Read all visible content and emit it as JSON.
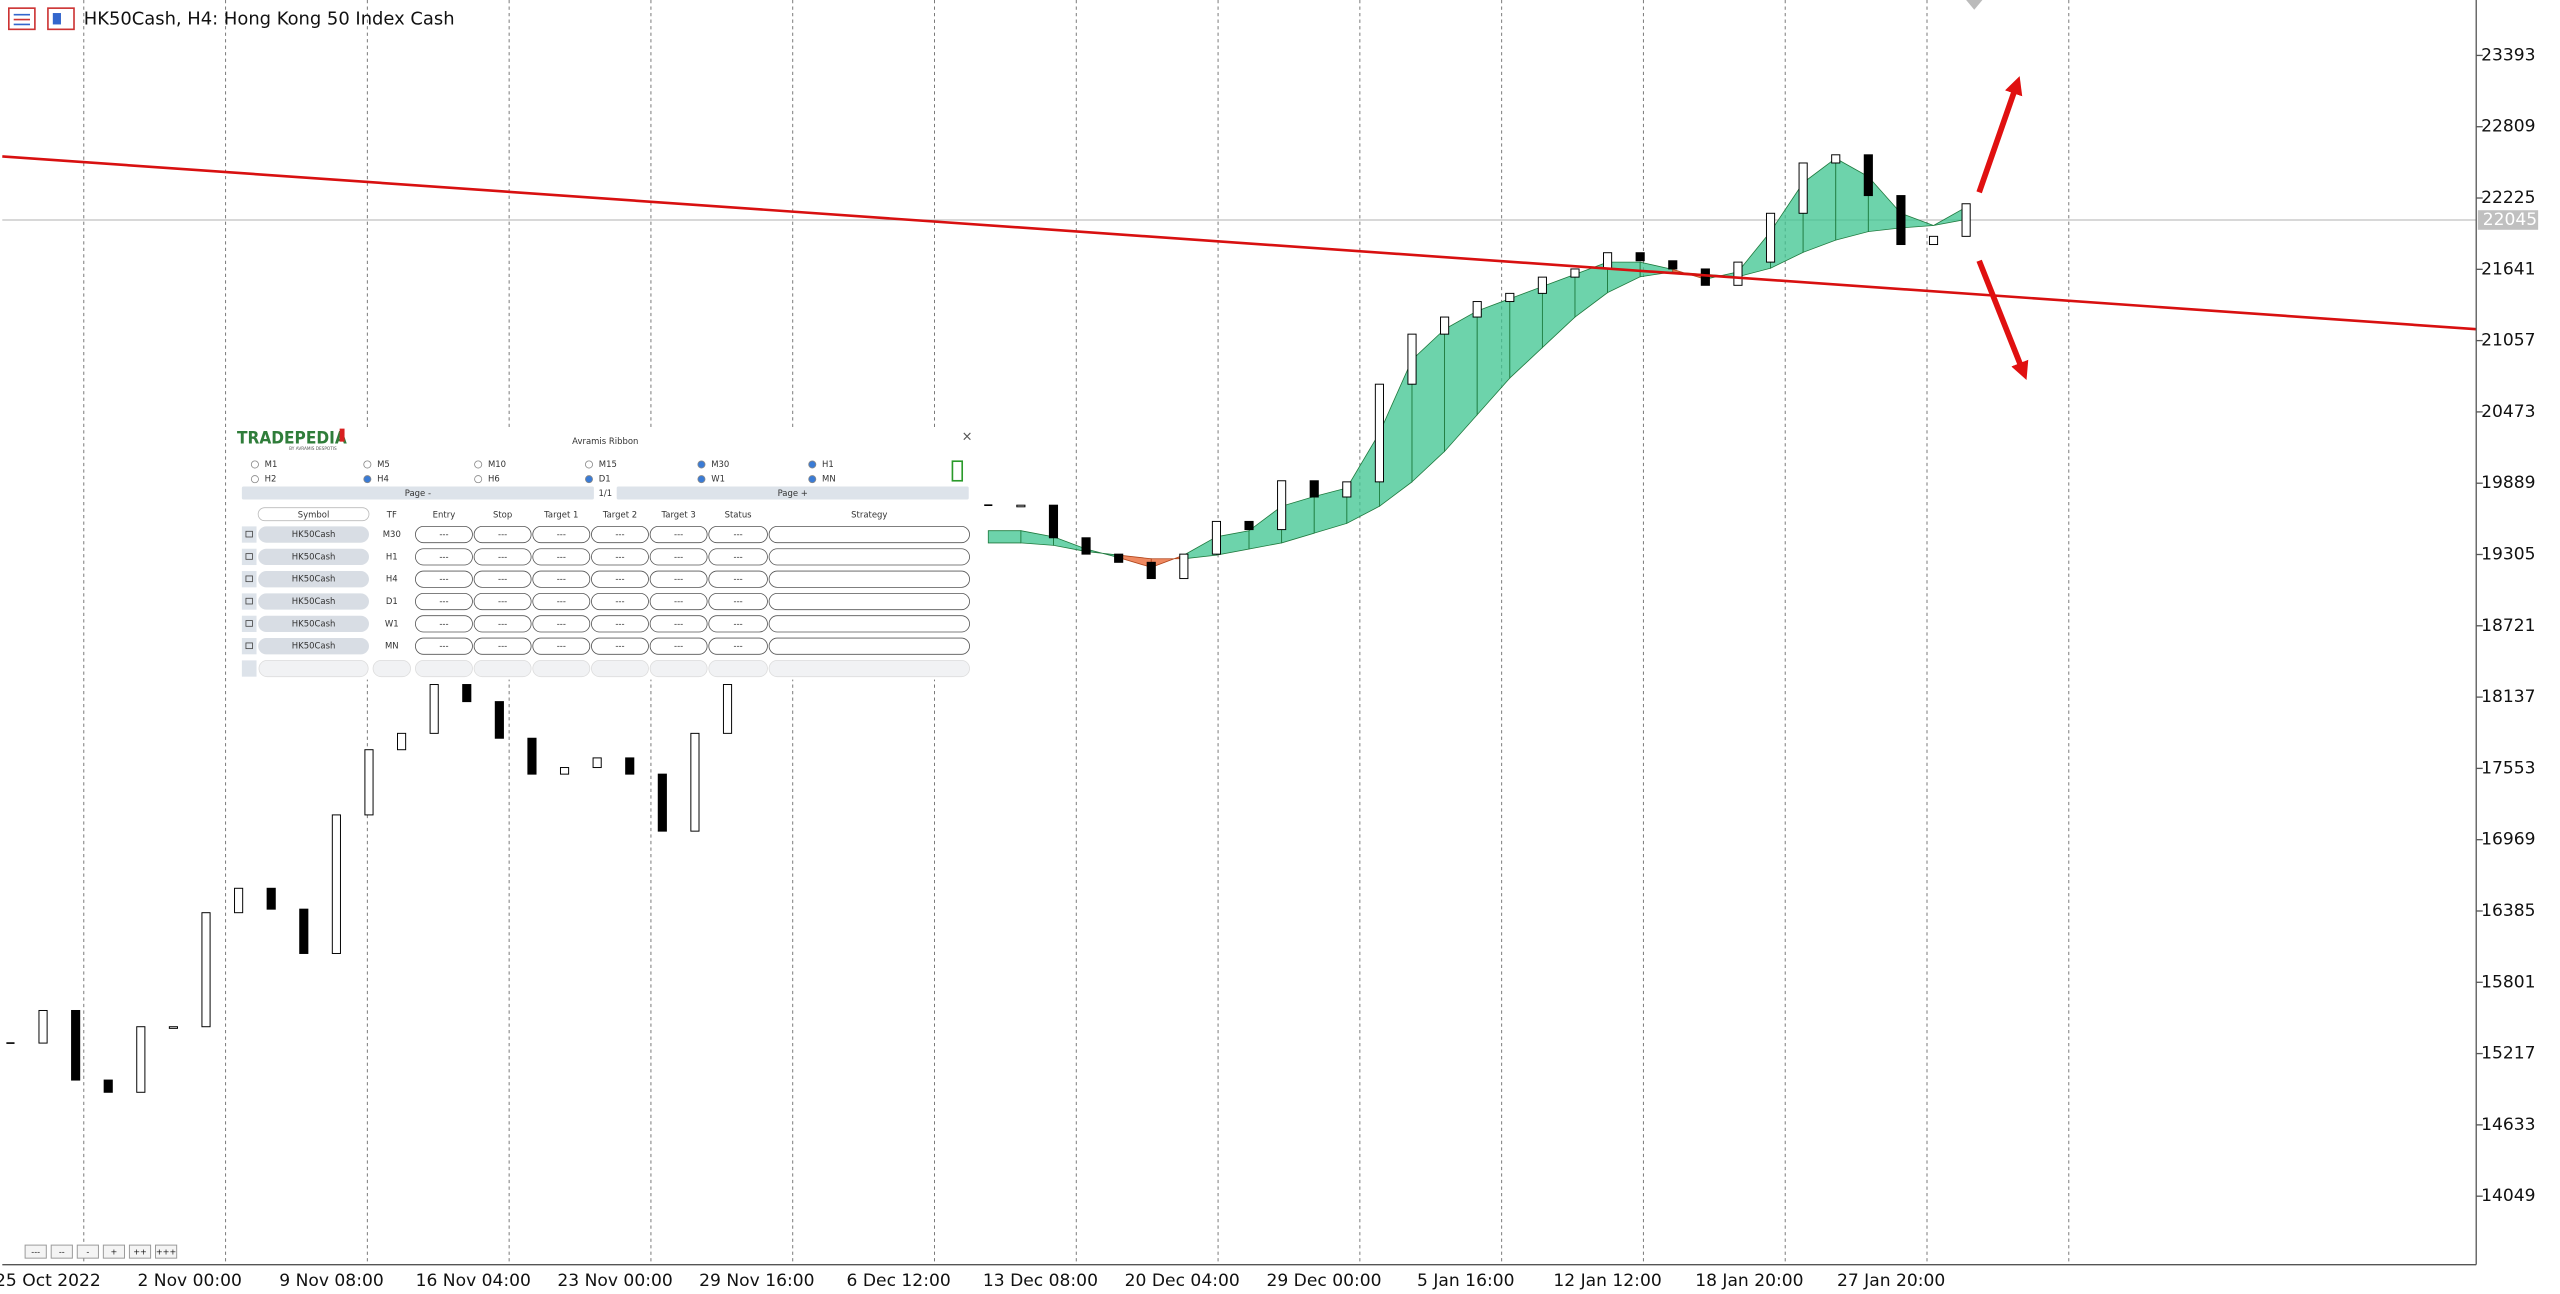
{
  "window": {
    "title": "HK50Cash, H4:  Hong Kong 50 Index Cash",
    "zoom_buttons": [
      "---",
      "--",
      "-",
      "+",
      "++",
      "+++"
    ]
  },
  "chart_data": {
    "type": "candlestick",
    "closes": [
      15303,
      15570,
      15000,
      14900,
      15437,
      15437,
      16371,
      16571,
      16400,
      16037,
      17172,
      17706,
      17840,
      18240,
      18100,
      17800,
      17506,
      17560,
      17639,
      17506,
      17039,
      17840,
      18240,
      null,
      null,
      null,
      null,
      null,
      null,
      null,
      19709,
      19709,
      19442,
      19308,
      19241,
      19108,
      19308,
      19576,
      19509,
      19909,
      19776,
      19900,
      20700,
      21110,
      21250,
      21377,
      21444,
      21577,
      21644,
      21777,
      21711,
      21644,
      21510,
      21700,
      22100,
      22512,
      22579,
      22245,
      21844,
      21911,
      22178
    ],
    "ribbon_fast": [
      null,
      null,
      null,
      null,
      null,
      null,
      null,
      null,
      null,
      null,
      null,
      null,
      null,
      null,
      null,
      null,
      null,
      null,
      null,
      null,
      null,
      null,
      null,
      null,
      null,
      null,
      null,
      null,
      null,
      null,
      19500,
      19500,
      19450,
      19350,
      19280,
      19200,
      19300,
      19450,
      19500,
      19700,
      19780,
      19850,
      20300,
      20900,
      21150,
      21300,
      21400,
      21500,
      21600,
      21700,
      21700,
      21640,
      21560,
      21620,
      21950,
      22350,
      22550,
      22400,
      22100,
      22000,
      22150
    ],
    "ribbon_slow": [
      null,
      null,
      null,
      null,
      null,
      null,
      null,
      null,
      null,
      null,
      null,
      null,
      null,
      null,
      null,
      null,
      null,
      null,
      null,
      null,
      null,
      null,
      null,
      null,
      null,
      null,
      null,
      null,
      null,
      null,
      19400,
      19400,
      19380,
      19330,
      19300,
      19270,
      19270,
      19300,
      19350,
      19400,
      19480,
      19560,
      19700,
      19900,
      20150,
      20450,
      20750,
      21000,
      21250,
      21450,
      21580,
      21620,
      21600,
      21580,
      21650,
      21780,
      21880,
      21950,
      21980,
      22000,
      22050
    ],
    "ylim": [
      13488,
      23847
    ],
    "yticks": [
      23393,
      22809,
      22225,
      21641,
      21057,
      20473,
      19889,
      19305,
      18721,
      18137,
      17553,
      16969,
      16385,
      15801,
      15217,
      14633,
      14049
    ],
    "x_labels": [
      "25 Oct 2022",
      "2 Nov 00:00",
      "9 Nov 08:00",
      "16 Nov 04:00",
      "23 Nov 00:00",
      "29 Nov 16:00",
      "6 Dec 12:00",
      "13 Dec 08:00",
      "20 Dec 04:00",
      "29 Dec 00:00",
      "5 Jan 16:00",
      "12 Jan 12:00",
      "18 Jan 20:00",
      "27 Jan 20:00"
    ],
    "current_price": 22045,
    "up_color": "#ffffff",
    "down_color": "#000000",
    "ribbon_up_color": "#3cc48f",
    "ribbon_down_color": "#e8622c",
    "price_line_color": "#c0c0c0",
    "grid": true
  },
  "panel": {
    "brand": "TRADEPEDIA",
    "brand_sub": "BY AVRAMIS DESPOTIS",
    "title": "Avramis Ribbon",
    "close": "×",
    "timeframes": [
      {
        "label": "M1",
        "checked": false
      },
      {
        "label": "M5",
        "checked": false
      },
      {
        "label": "M10",
        "checked": false
      },
      {
        "label": "M15",
        "checked": false
      },
      {
        "label": "M30",
        "checked": true
      },
      {
        "label": "H1",
        "checked": true
      },
      {
        "label": "H2",
        "checked": false
      },
      {
        "label": "H4",
        "checked": true
      },
      {
        "label": "H6",
        "checked": false
      },
      {
        "label": "D1",
        "checked": true
      },
      {
        "label": "W1",
        "checked": true
      },
      {
        "label": "MN",
        "checked": true
      }
    ],
    "page_prev": "Page -",
    "page_indicator": "1/1",
    "page_next": "Page +",
    "columns": [
      "Symbol",
      "TF",
      "Entry",
      "Stop",
      "Target 1",
      "Target 2",
      "Target 3",
      "Status",
      "Strategy"
    ],
    "rows": [
      {
        "symbol": "HK50Cash",
        "tf": "M30",
        "cells": [
          "---",
          "---",
          "---",
          "---",
          "---",
          "---"
        ]
      },
      {
        "symbol": "HK50Cash",
        "tf": "H1",
        "cells": [
          "---",
          "---",
          "---",
          "---",
          "---",
          "---"
        ]
      },
      {
        "symbol": "HK50Cash",
        "tf": "H4",
        "cells": [
          "---",
          "---",
          "---",
          "---",
          "---",
          "---"
        ]
      },
      {
        "symbol": "HK50Cash",
        "tf": "D1",
        "cells": [
          "---",
          "---",
          "---",
          "---",
          "---",
          "---"
        ]
      },
      {
        "symbol": "HK50Cash",
        "tf": "W1",
        "cells": [
          "---",
          "---",
          "---",
          "---",
          "---",
          "---"
        ]
      },
      {
        "symbol": "HK50Cash",
        "tf": "MN",
        "cells": [
          "---",
          "---",
          "---",
          "---",
          "---",
          "---"
        ]
      }
    ]
  }
}
